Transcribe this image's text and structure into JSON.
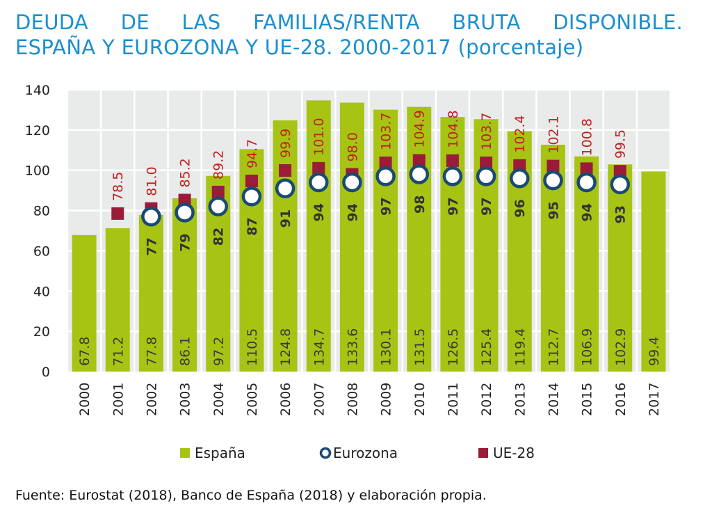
{
  "title_line1": "DEUDA DE LAS FAMILIAS/RENTA BRUTA DISPONIBLE.",
  "title_line2": "ESPAÑA Y EUROZONA Y UE-28. 2000-2017 (porcentaje)",
  "source": "Fuente: Eurostat (2018), Banco de España (2018) y elaboración propia.",
  "colors": {
    "espana": "#a7c414",
    "eurozona_stroke": "#1a4a73",
    "ue28": "#9b1b39",
    "ue28_label": "#c01e1e",
    "title": "#1b8fd0",
    "plot_bg": "#e9eaea"
  },
  "chart_data": {
    "type": "bar",
    "categories": [
      "2000",
      "2001",
      "2002",
      "2003",
      "2004",
      "2005",
      "2006",
      "2007",
      "2008",
      "2009",
      "2010",
      "2011",
      "2012",
      "2013",
      "2014",
      "2015",
      "2016",
      "2017"
    ],
    "ylim": [
      0,
      140
    ],
    "yticks": [
      0,
      20,
      40,
      60,
      80,
      100,
      120,
      140
    ],
    "grid": true,
    "legend_position": "bottom",
    "series": [
      {
        "name": "España",
        "kind": "bar",
        "values": [
          67.8,
          71.2,
          77.8,
          86.1,
          97.2,
          110.5,
          124.8,
          134.7,
          133.6,
          130.1,
          131.5,
          126.5,
          125.4,
          119.4,
          112.7,
          106.9,
          102.9,
          99.4
        ],
        "labels": [
          "67.8",
          "71.2",
          "77.8",
          "86.1",
          "97.2",
          "110.5",
          "124.8",
          "134.7",
          "133.6",
          "130.1",
          "131.5",
          "126.5",
          "125.4",
          "119.4",
          "112.7",
          "106.9",
          "102.9",
          "99.4"
        ]
      },
      {
        "name": "Eurozona",
        "kind": "circle",
        "values": [
          null,
          null,
          77,
          79,
          82,
          87,
          91,
          94,
          94,
          97,
          98,
          97,
          97,
          96,
          95,
          94,
          93,
          null
        ],
        "labels": [
          "",
          "",
          "77",
          "79",
          "82",
          "87",
          "91",
          "94",
          "94",
          "97",
          "98",
          "97",
          "97",
          "96",
          "95",
          "94",
          "93",
          ""
        ]
      },
      {
        "name": "UE-28",
        "kind": "square",
        "values": [
          null,
          78.5,
          81.0,
          85.2,
          89.2,
          94.7,
          99.9,
          101.0,
          98.0,
          103.7,
          104.9,
          104.8,
          103.7,
          102.4,
          102.1,
          100.8,
          99.5,
          null
        ],
        "labels": [
          "",
          "78.5",
          "81.0",
          "85.2",
          "89.2",
          "94.7",
          "99.9",
          "101.0",
          "98.0",
          "103.7",
          "104.9",
          "104.8",
          "103.7",
          "102.4",
          "102.1",
          "100.8",
          "99.5",
          ""
        ]
      }
    ]
  }
}
